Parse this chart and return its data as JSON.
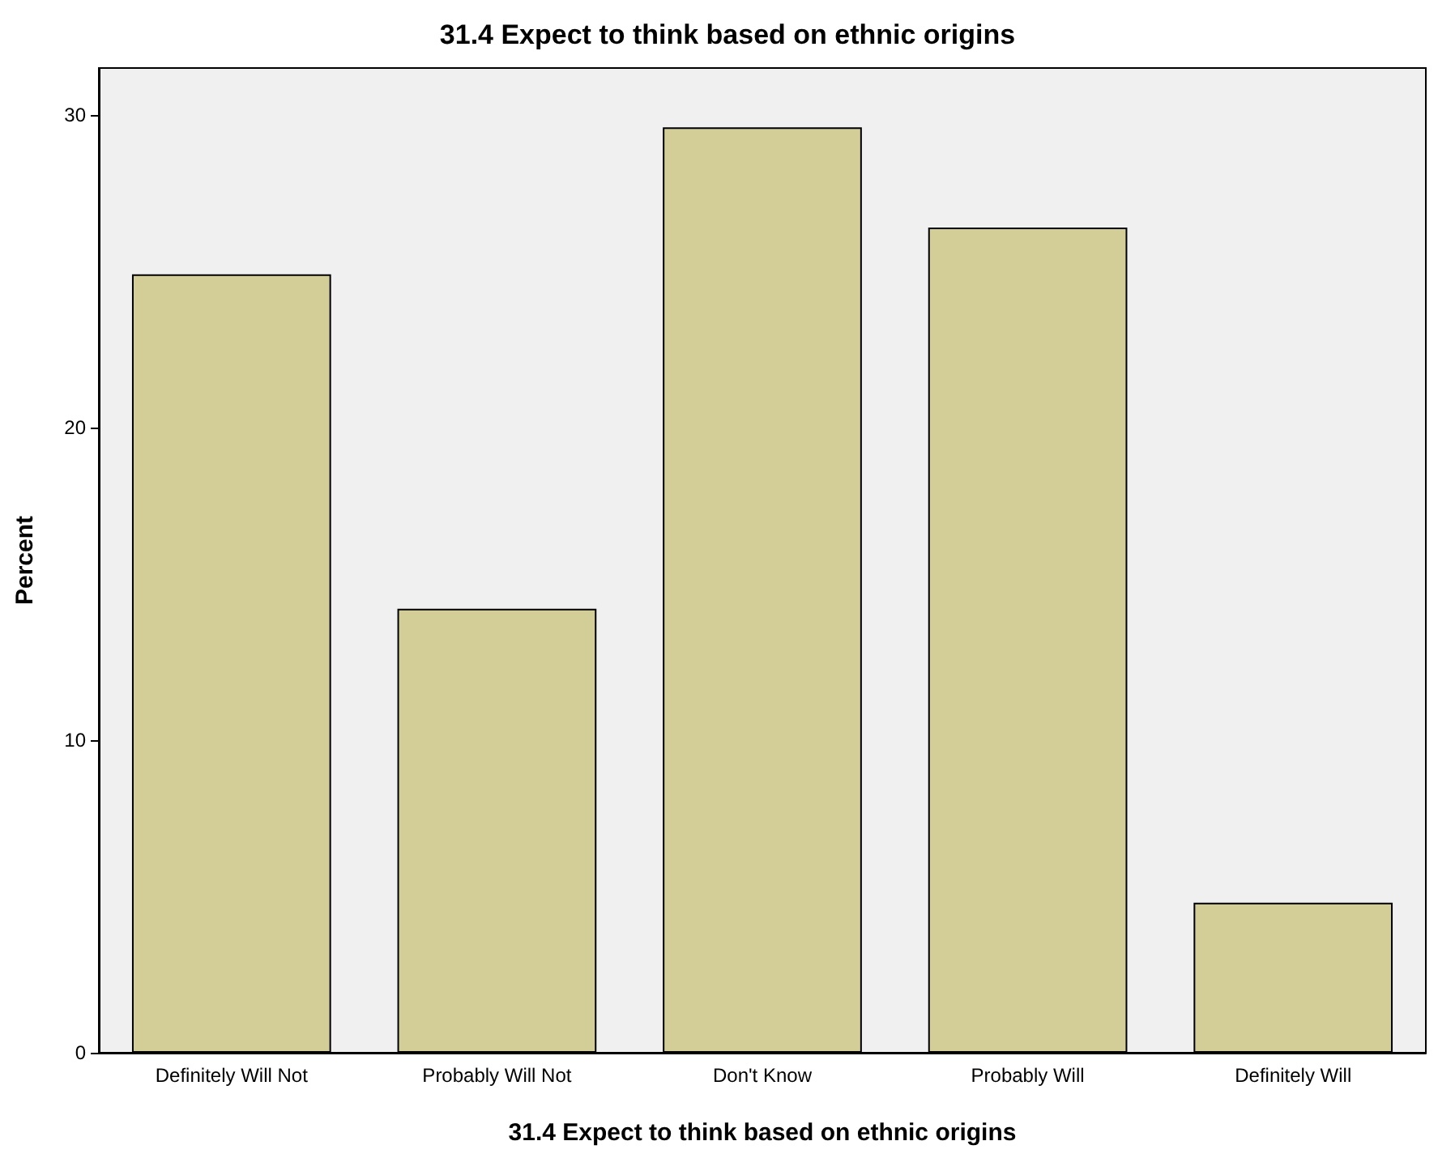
{
  "chart_data": {
    "type": "bar",
    "title": "31.4 Expect to think based on ethnic origins",
    "xlabel": "31.4 Expect to think based on ethnic origins",
    "ylabel": "Percent",
    "categories": [
      "Definitely Will Not",
      "Probably Will Not",
      "Don't Know",
      "Probably Will",
      "Definitely Will"
    ],
    "values": [
      24.9,
      14.2,
      29.6,
      26.4,
      4.8
    ],
    "color": "#d3ce97",
    "ylim": [
      0,
      31.5
    ],
    "yticks": [
      0,
      10,
      20,
      30
    ],
    "grid": false
  }
}
